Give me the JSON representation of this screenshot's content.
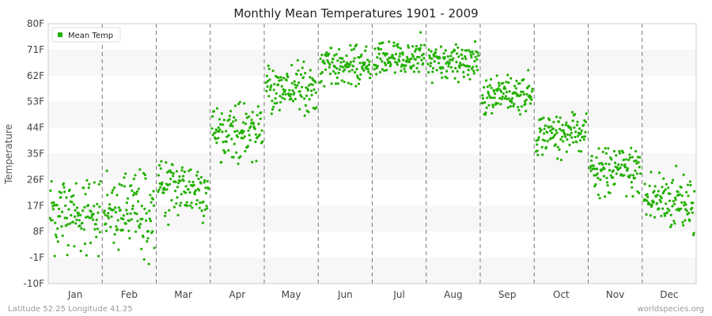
{
  "chart_data": {
    "type": "scatter",
    "title": "Monthly Mean Temperatures 1901 - 2009",
    "ylabel": "Temperature",
    "xlabel": "",
    "y_ticks": [
      "-10F",
      "-1F",
      "8F",
      "17F",
      "26F",
      "35F",
      "44F",
      "53F",
      "62F",
      "71F",
      "80F"
    ],
    "ylim": [
      -10,
      80
    ],
    "categories": [
      "Jan",
      "Feb",
      "Mar",
      "Apr",
      "May",
      "Jun",
      "Jul",
      "Aug",
      "Sep",
      "Oct",
      "Nov",
      "Dec"
    ],
    "series": [
      {
        "name": "Mean Temp",
        "color": "#22b000",
        "year_range": [
          1901,
          2009
        ],
        "monthly_approx_mean": [
          15,
          15,
          23,
          43,
          58,
          65,
          68,
          66,
          56,
          42,
          29,
          19
        ],
        "monthly_approx_min": [
          -1,
          -4,
          8,
          31,
          48,
          58,
          60,
          59,
          48,
          32,
          17,
          5
        ],
        "monthly_approx_max": [
          26,
          30,
          33,
          53,
          68,
          74,
          77,
          75,
          64,
          50,
          37,
          31
        ],
        "monthly_spread": [
          7.5,
          7.5,
          5.5,
          4.5,
          3.8,
          3.2,
          3.0,
          3.2,
          3.3,
          3.6,
          4.2,
          5.5
        ]
      }
    ],
    "grid": "horizontal bands",
    "month_dividers": "dashed",
    "legend": "top-left"
  },
  "footer": {
    "left": "Latitude 52.25 Longitude 41.25",
    "right": "worldspecies.org"
  }
}
